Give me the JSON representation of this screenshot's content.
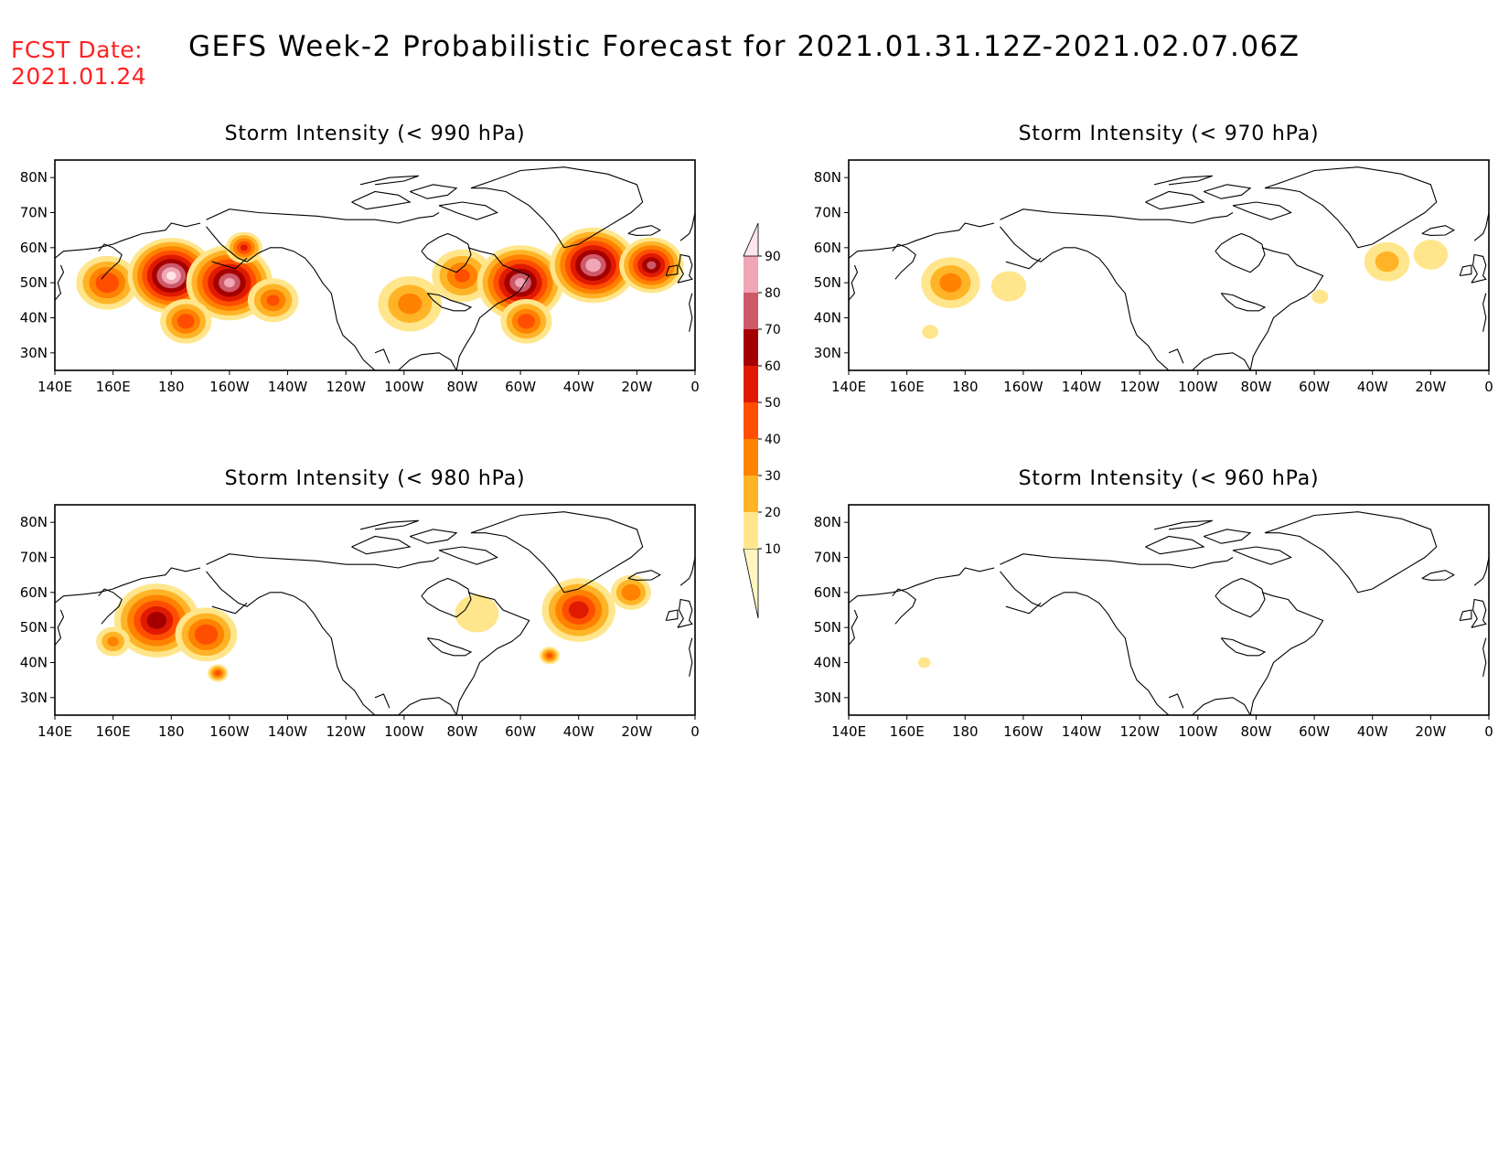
{
  "header": {
    "fcst_label": "FCST Date:",
    "fcst_date": "2021.01.24",
    "title": "GEFS Week-2 Probabilistic Forecast for 2021.01.31.12Z-2021.02.07.06Z"
  },
  "map": {
    "lon_range": [
      140,
      360
    ],
    "lat_range": [
      25,
      85
    ],
    "lon_ticks": [
      "140E",
      "160E",
      "180",
      "160W",
      "140W",
      "120W",
      "100W",
      "80W",
      "60W",
      "40W",
      "20W",
      "0"
    ],
    "lat_ticks": [
      "80N",
      "70N",
      "60N",
      "50N",
      "40N",
      "30N"
    ]
  },
  "colorbar": {
    "levels": [
      "10",
      "20",
      "30",
      "40",
      "50",
      "60",
      "70",
      "80",
      "90"
    ],
    "colors": [
      "#fff6c0",
      "#ffe68c",
      "#ffb428",
      "#ff8200",
      "#ff4e00",
      "#e01a00",
      "#a50000",
      "#cd5a6a",
      "#f0a6b4",
      "#ffe6ea"
    ]
  },
  "panels": [
    {
      "title": "Storm Intensity (< 990 hPa)",
      "blobs": [
        {
          "lon": 158,
          "lat": 50,
          "r": 12,
          "p": 48
        },
        {
          "lon": 180,
          "lat": 52,
          "r": 16,
          "p": 90
        },
        {
          "lon": 200,
          "lat": 50,
          "r": 16,
          "p": 80
        },
        {
          "lon": 215,
          "lat": 45,
          "r": 10,
          "p": 40
        },
        {
          "lon": 185,
          "lat": 39,
          "r": 10,
          "p": 45
        },
        {
          "lon": 205,
          "lat": 60,
          "r": 7,
          "p": 50
        },
        {
          "lon": 262,
          "lat": 44,
          "r": 13,
          "p": 32
        },
        {
          "lon": 280,
          "lat": 52,
          "r": 12,
          "p": 40
        },
        {
          "lon": 300,
          "lat": 50,
          "r": 16,
          "p": 80
        },
        {
          "lon": 325,
          "lat": 55,
          "r": 16,
          "p": 85
        },
        {
          "lon": 345,
          "lat": 55,
          "r": 12,
          "p": 70
        },
        {
          "lon": 302,
          "lat": 39,
          "r": 10,
          "p": 45
        }
      ]
    },
    {
      "title": "Storm Intensity (< 970 hPa)",
      "blobs": [
        {
          "lon": 175,
          "lat": 50,
          "r": 12,
          "p": 32
        },
        {
          "lon": 195,
          "lat": 49,
          "r": 8,
          "p": 18
        },
        {
          "lon": 168,
          "lat": 36,
          "r": 4,
          "p": 14
        },
        {
          "lon": 325,
          "lat": 56,
          "r": 10,
          "p": 21
        },
        {
          "lon": 340,
          "lat": 58,
          "r": 8,
          "p": 17
        },
        {
          "lon": 302,
          "lat": 46,
          "r": 4,
          "p": 14
        }
      ]
    },
    {
      "title": "Storm Intensity (< 980 hPa)",
      "blobs": [
        {
          "lon": 175,
          "lat": 52,
          "r": 16,
          "p": 65
        },
        {
          "lon": 192,
          "lat": 48,
          "r": 12,
          "p": 48
        },
        {
          "lon": 160,
          "lat": 46,
          "r": 7,
          "p": 30
        },
        {
          "lon": 196,
          "lat": 37,
          "r": 4,
          "p": 42
        },
        {
          "lon": 285,
          "lat": 54,
          "r": 10,
          "p": 18
        },
        {
          "lon": 320,
          "lat": 55,
          "r": 14,
          "p": 55
        },
        {
          "lon": 338,
          "lat": 60,
          "r": 8,
          "p": 38
        },
        {
          "lon": 310,
          "lat": 42,
          "r": 4,
          "p": 40
        }
      ]
    },
    {
      "title": "Storm Intensity (< 960 hPa)",
      "blobs": [
        {
          "lon": 166,
          "lat": 40,
          "r": 3,
          "p": 15
        }
      ]
    }
  ]
}
